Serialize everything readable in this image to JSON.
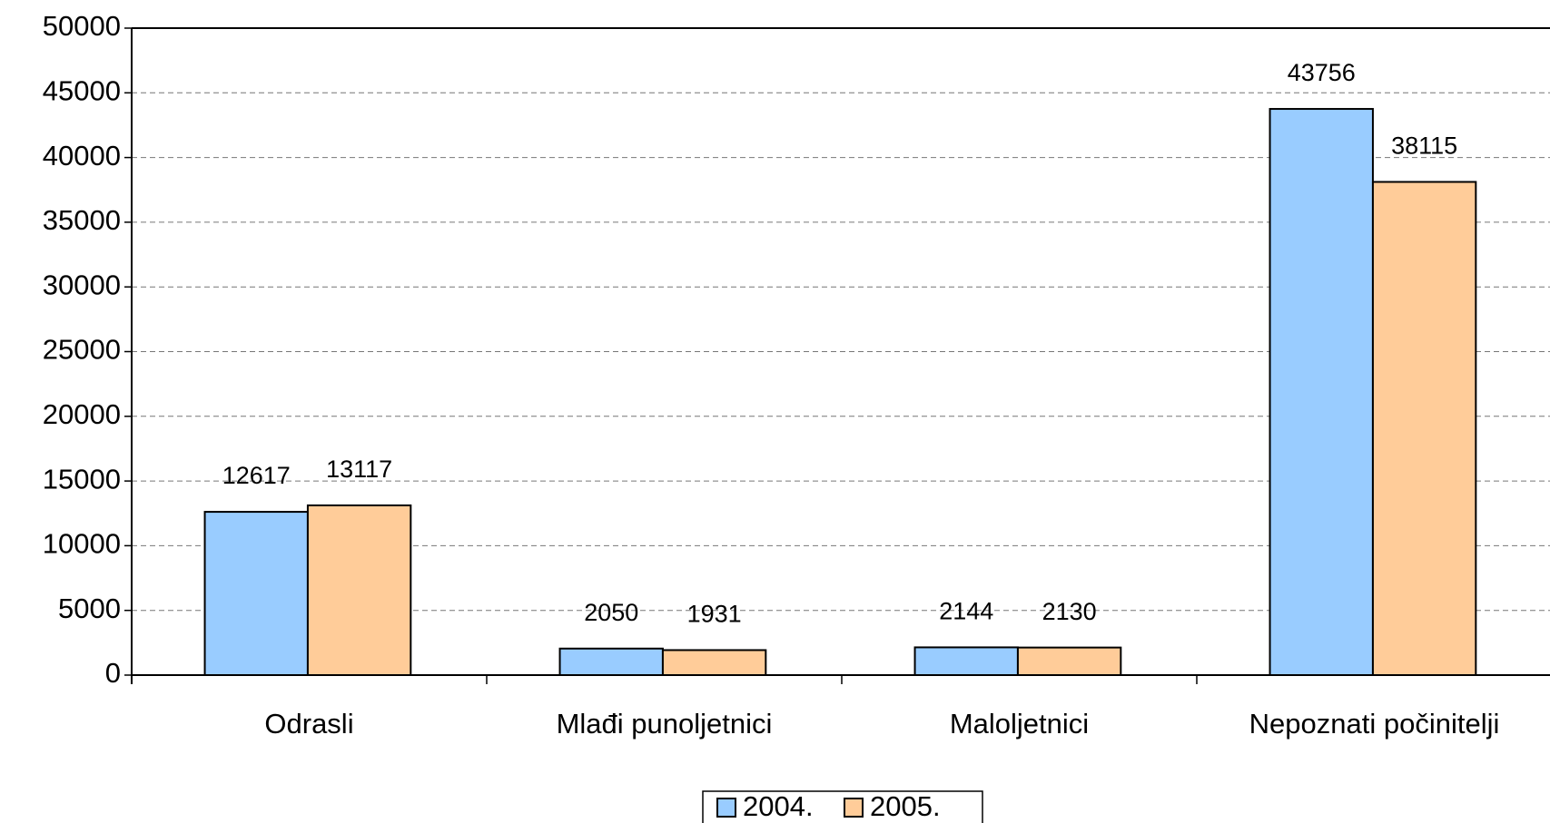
{
  "chart_data": {
    "type": "bar",
    "categories": [
      "Odrasli",
      "Mlađi punoljetnici",
      "Maloljetnici",
      "Nepoznati počinitelji"
    ],
    "series": [
      {
        "name": "2004.",
        "color": "#99ccff",
        "values": [
          12617,
          2050,
          2144,
          43756
        ]
      },
      {
        "name": "2005.",
        "color": "#ffcc99",
        "values": [
          13117,
          1931,
          2130,
          38115
        ]
      }
    ],
    "ylim": [
      0,
      50000
    ],
    "yticks": [
      0,
      5000,
      10000,
      15000,
      20000,
      25000,
      30000,
      35000,
      40000,
      45000,
      50000
    ],
    "grid": true,
    "legend": "bottom"
  }
}
